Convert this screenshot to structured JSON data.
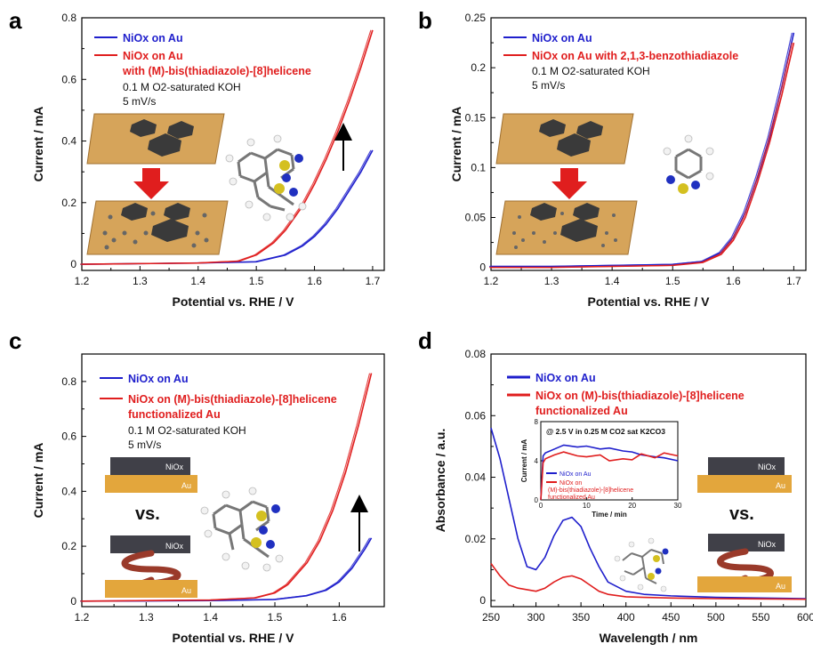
{
  "colors": {
    "blue": "#1f1fcc",
    "red": "#e01e1e",
    "gold": "#d6a45a",
    "slab": "#404048",
    "helix": "#9a3a2a"
  },
  "chart_data": [
    {
      "type": "line",
      "panel": "a",
      "xlabel": "Potential vs. RHE / V",
      "ylabel": "Current / mA",
      "xlim": [
        1.2,
        1.72
      ],
      "ylim": [
        -0.02,
        0.8
      ],
      "xticks": [
        "1.2",
        "1.3",
        "1.4",
        "1.5",
        "1.6",
        "1.7"
      ],
      "yticks": [
        "0",
        "0.2",
        "0.4",
        "0.6",
        "0.8"
      ],
      "legend": {
        "blue": "NiOx on Au",
        "red_line1": "NiOx on Au",
        "red_line2": "with (M)-bis(thiadiazole)-[8]helicene"
      },
      "conditions": [
        "0.1 M O2-saturated KOH",
        "5 mV/s"
      ],
      "series": [
        {
          "color": "blue",
          "x": [
            1.2,
            1.3,
            1.4,
            1.5,
            1.55,
            1.58,
            1.6,
            1.62,
            1.64,
            1.66,
            1.68,
            1.7
          ],
          "y": [
            0.0,
            0.002,
            0.004,
            0.008,
            0.03,
            0.06,
            0.09,
            0.13,
            0.18,
            0.24,
            0.3,
            0.37
          ]
        },
        {
          "color": "red",
          "x": [
            1.2,
            1.3,
            1.4,
            1.47,
            1.5,
            1.53,
            1.55,
            1.58,
            1.6,
            1.62,
            1.64,
            1.66,
            1.68,
            1.7
          ],
          "y": [
            0.0,
            0.002,
            0.004,
            0.01,
            0.03,
            0.07,
            0.11,
            0.19,
            0.26,
            0.34,
            0.43,
            0.53,
            0.64,
            0.76
          ]
        }
      ]
    },
    {
      "type": "line",
      "panel": "b",
      "xlabel": "Potential vs. RHE / V",
      "ylabel": "Current / mA",
      "xlim": [
        1.2,
        1.72
      ],
      "ylim": [
        -0.003,
        0.25
      ],
      "xticks": [
        "1.2",
        "1.3",
        "1.4",
        "1.5",
        "1.6",
        "1.7"
      ],
      "yticks": [
        "0",
        "0.05",
        "0.1",
        "0.15",
        "0.2",
        "0.25"
      ],
      "legend": {
        "blue": "NiOx on Au",
        "red": "NiOx on Au with 2,1,3-benzothiadiazole"
      },
      "conditions": [
        "0.1 M O2-saturated KOH",
        "5 mV/s"
      ],
      "series": [
        {
          "color": "blue",
          "x": [
            1.2,
            1.3,
            1.4,
            1.5,
            1.55,
            1.58,
            1.6,
            1.62,
            1.64,
            1.66,
            1.68,
            1.7
          ],
          "y": [
            0.001,
            0.001,
            0.002,
            0.003,
            0.006,
            0.015,
            0.03,
            0.055,
            0.09,
            0.13,
            0.18,
            0.235
          ]
        },
        {
          "color": "red",
          "x": [
            1.2,
            1.3,
            1.4,
            1.5,
            1.55,
            1.58,
            1.6,
            1.62,
            1.64,
            1.66,
            1.68,
            1.7
          ],
          "y": [
            0.0,
            0.0,
            0.001,
            0.002,
            0.005,
            0.013,
            0.027,
            0.05,
            0.085,
            0.125,
            0.172,
            0.225
          ]
        }
      ]
    },
    {
      "type": "line",
      "panel": "c",
      "xlabel": "Potential vs. RHE / V",
      "ylabel": "Current / mA",
      "xlim": [
        1.2,
        1.67
      ],
      "ylim": [
        -0.02,
        0.9
      ],
      "xticks": [
        "1.2",
        "1.3",
        "1.4",
        "1.5",
        "1.6"
      ],
      "yticks": [
        "0",
        "0.2",
        "0.4",
        "0.6",
        "0.8"
      ],
      "legend": {
        "blue": "NiOx on Au",
        "red_line1": "NiOx on (M)-bis(thiadiazole)-[8]helicene",
        "red_line2": "functionalized Au"
      },
      "conditions": [
        "0.1 M O2-saturated KOH",
        "5 mV/s"
      ],
      "vs_label": "vs.",
      "layer_labels": {
        "nio": "NiOx",
        "au": "Au",
        "helicene": "helicene"
      },
      "series": [
        {
          "color": "blue",
          "x": [
            1.2,
            1.3,
            1.4,
            1.5,
            1.55,
            1.58,
            1.6,
            1.62,
            1.64,
            1.65
          ],
          "y": [
            0.0,
            0.001,
            0.002,
            0.006,
            0.02,
            0.04,
            0.07,
            0.12,
            0.19,
            0.23
          ]
        },
        {
          "color": "red",
          "x": [
            1.2,
            1.3,
            1.4,
            1.47,
            1.5,
            1.52,
            1.55,
            1.57,
            1.59,
            1.61,
            1.63,
            1.65
          ],
          "y": [
            0.0,
            0.002,
            0.004,
            0.012,
            0.03,
            0.06,
            0.14,
            0.22,
            0.33,
            0.47,
            0.64,
            0.83
          ]
        }
      ]
    },
    {
      "type": "line",
      "panel": "d",
      "xlabel": "Wavelength / nm",
      "ylabel": "Absorbance / a.u.",
      "xlim": [
        250,
        600
      ],
      "ylim": [
        -0.002,
        0.08
      ],
      "xticks": [
        "250",
        "300",
        "350",
        "400",
        "450",
        "500",
        "550",
        "600"
      ],
      "yticks": [
        "0",
        "0.02",
        "0.04",
        "0.06",
        "0.08"
      ],
      "legend": {
        "blue": "NiOx on Au",
        "red_line1": "NiOx on (M)-bis(thiadiazole)-[8]helicene",
        "red_line2": "functionalized Au"
      },
      "vs_label": "vs.",
      "layer_labels": {
        "nio": "NiOx",
        "au": "Au",
        "helicene": "helicene"
      },
      "series": [
        {
          "color": "blue",
          "x": [
            250,
            260,
            270,
            280,
            290,
            300,
            310,
            320,
            330,
            340,
            350,
            360,
            370,
            380,
            400,
            420,
            450,
            500,
            550,
            600
          ],
          "y": [
            0.056,
            0.046,
            0.033,
            0.02,
            0.011,
            0.01,
            0.014,
            0.021,
            0.026,
            0.027,
            0.024,
            0.017,
            0.011,
            0.006,
            0.003,
            0.002,
            0.0015,
            0.001,
            0.0008,
            0.0006
          ]
        },
        {
          "color": "red",
          "x": [
            250,
            260,
            270,
            280,
            290,
            300,
            310,
            320,
            330,
            340,
            350,
            360,
            370,
            380,
            400,
            420,
            450,
            500,
            550,
            600
          ],
          "y": [
            0.012,
            0.008,
            0.005,
            0.004,
            0.0035,
            0.003,
            0.004,
            0.006,
            0.0075,
            0.008,
            0.007,
            0.005,
            0.003,
            0.002,
            0.0012,
            0.001,
            0.0008,
            0.0006,
            0.0005,
            0.0004
          ]
        }
      ],
      "inset": {
        "title": "@ 2.5 V in 0.25 M CO2 sat K2CO3",
        "xlabel": "Time / min",
        "ylabel": "Current / mA",
        "xlim": [
          0,
          30
        ],
        "ylim": [
          0,
          8
        ],
        "xticks": [
          "0",
          "10",
          "20",
          "30"
        ],
        "yticks": [
          "0",
          "4",
          "8"
        ],
        "legend": {
          "blue": "NiOx on Au",
          "red_line1": "NiOx on",
          "red_line2": "(M)-bis(thiadiazole)-[8]helicene",
          "red_line3": "functionalized Au"
        },
        "series": [
          {
            "color": "blue",
            "x": [
              0,
              0.5,
              1,
              3,
              5,
              8,
              10,
              13,
              15,
              18,
              20,
              22,
              25,
              27,
              30
            ],
            "y": [
              0,
              4.5,
              4.8,
              5.2,
              5.6,
              5.4,
              5.5,
              5.2,
              5.3,
              5.0,
              4.9,
              4.6,
              4.4,
              4.3,
              4.0
            ]
          },
          {
            "color": "red",
            "x": [
              0,
              0.5,
              1,
              3,
              5,
              8,
              10,
              13,
              15,
              18,
              20,
              22,
              25,
              27,
              30
            ],
            "y": [
              0,
              3.8,
              4.2,
              4.6,
              4.9,
              4.5,
              4.4,
              4.6,
              4.0,
              4.2,
              4.1,
              4.7,
              4.3,
              4.8,
              4.5
            ]
          }
        ]
      }
    }
  ]
}
